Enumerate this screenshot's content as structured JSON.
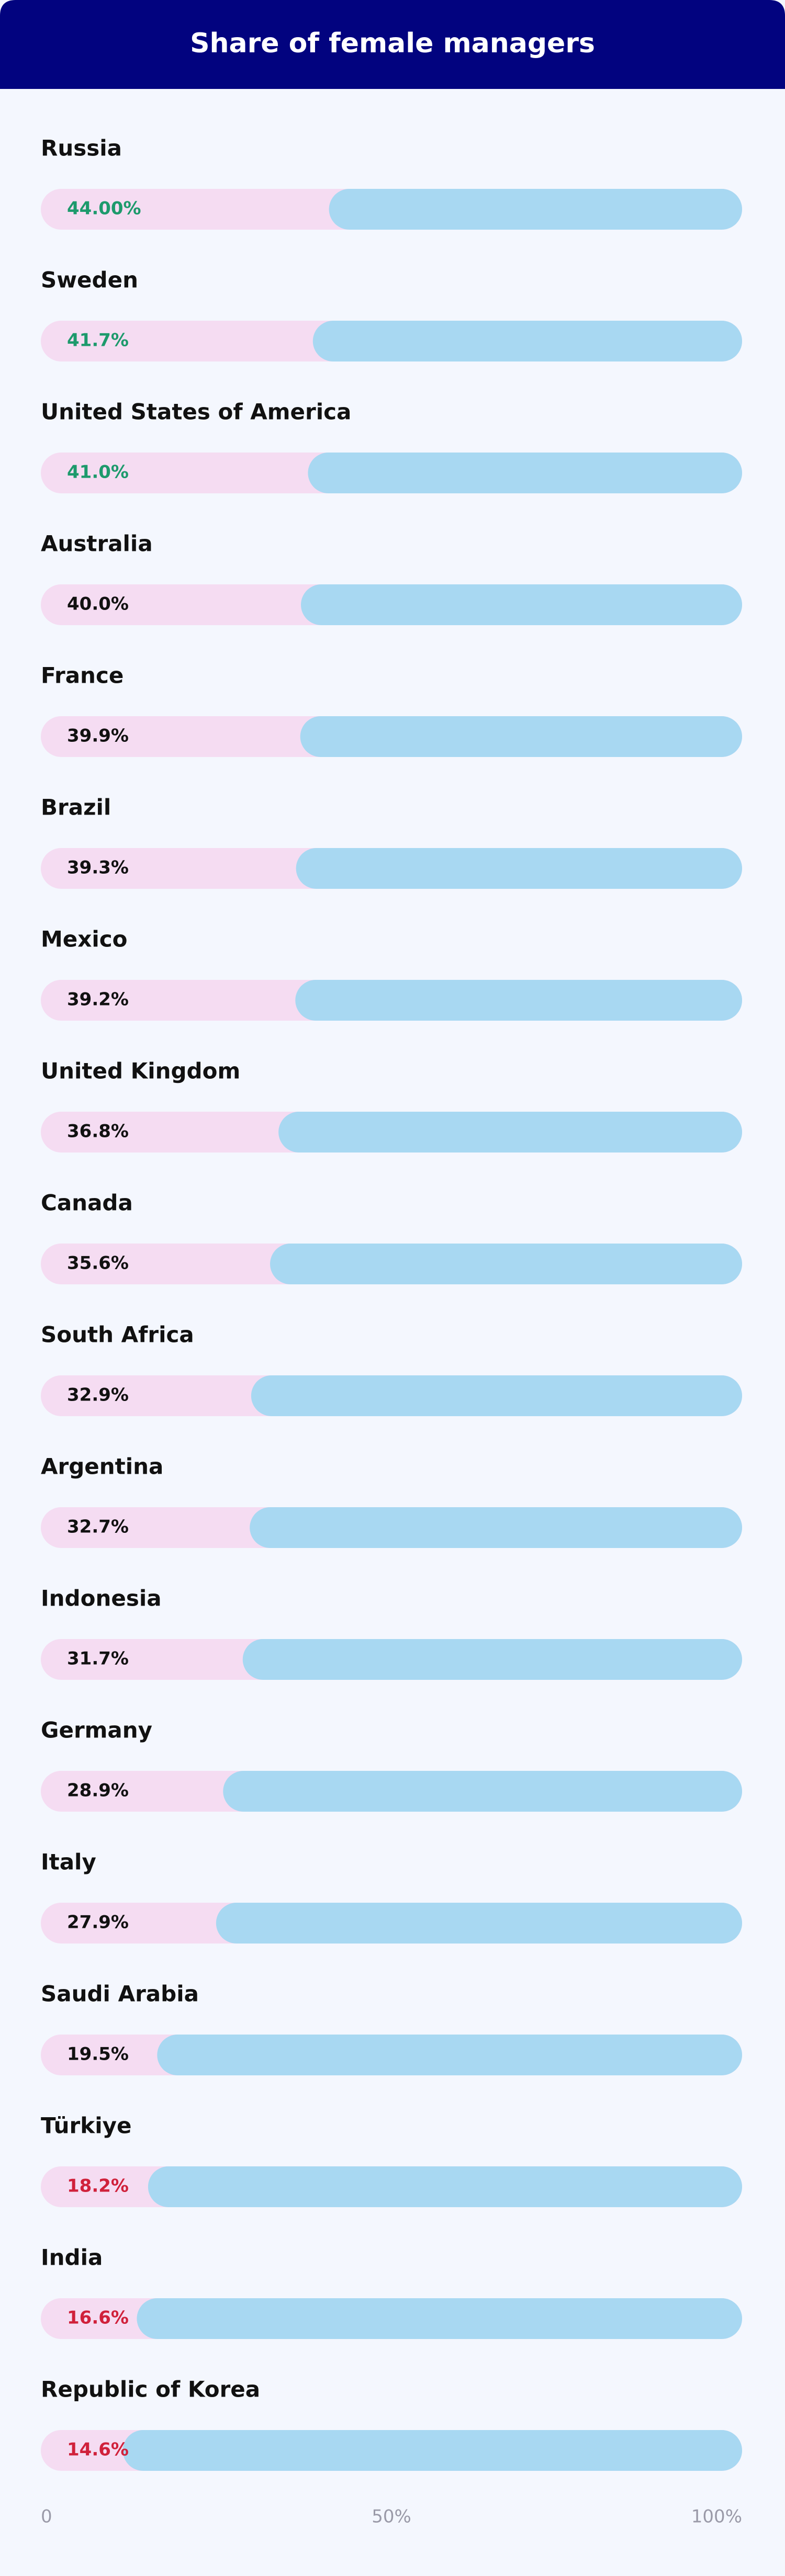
{
  "chart_data": {
    "type": "bar",
    "orientation": "horizontal",
    "title": "Share of female managers",
    "categories": [
      "Russia",
      "Sweden",
      "United States of America",
      "Australia",
      "France",
      "Brazil",
      "Mexico",
      "United Kingdom",
      "Canada",
      "South Africa",
      "Argentina",
      "Indonesia",
      "Germany",
      "Italy",
      "Saudi Arabia",
      "Türkiye",
      "India",
      "Republic of Korea"
    ],
    "values": [
      44,
      41.7,
      41.0,
      40.0,
      39.9,
      39.3,
      39.2,
      36.8,
      35.6,
      32.9,
      32.7,
      31.7,
      28.9,
      27.9,
      19.5,
      18.2,
      16.6,
      14.6
    ],
    "value_labels": [
      "44.00%",
      "41.7%",
      "41.0%",
      "40.0%",
      "39.9%",
      "39.3%",
      "39.2%",
      "36.8%",
      "35.6%",
      "32.9%",
      "32.7%",
      "31.7%",
      "28.9%",
      "27.9%",
      "19.5%",
      "18.2%",
      "16.6%",
      "14.6%"
    ],
    "value_label_colors": [
      "#1d9a6c",
      "#1d9a6c",
      "#1d9a6c",
      "#111111",
      "#111111",
      "#111111",
      "#111111",
      "#111111",
      "#111111",
      "#111111",
      "#111111",
      "#111111",
      "#111111",
      "#111111",
      "#111111",
      "#d0213b",
      "#d0213b",
      "#d0213b"
    ],
    "color": "#a8d8f2",
    "track_color": "#f5dcf2",
    "xlim": [
      0,
      100
    ],
    "xticks": [
      0,
      {
        "value": 50,
        "label": "50%"
      },
      {
        "value": 100,
        "label": "100%"
      }
    ]
  }
}
